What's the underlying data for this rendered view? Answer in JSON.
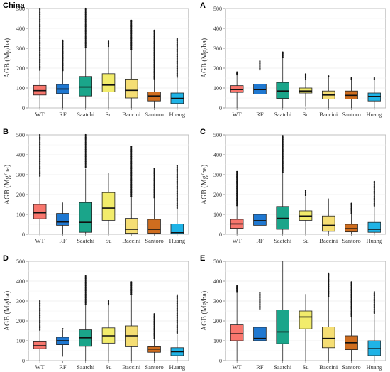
{
  "chart_data": [
    {
      "panel": "China",
      "type": "boxplot",
      "ylabel": "AGB (Mg/ha)",
      "ylim": [
        0,
        500
      ],
      "yticks": [
        0,
        100,
        200,
        300,
        400,
        500
      ],
      "grid": true,
      "categories": [
        "WT",
        "RF",
        "Saatchi",
        "Su",
        "Baccini",
        "Santoro",
        "Huang"
      ],
      "boxes": [
        {
          "name": "WT",
          "min": 0,
          "q1": 65,
          "median": 87,
          "q3": 113,
          "max": 500,
          "whisker_hi": 190,
          "color": "#f8766d"
        },
        {
          "name": "RF",
          "min": 0,
          "q1": 72,
          "median": 95,
          "q3": 118,
          "max": 340,
          "whisker_hi": 185,
          "color": "#1f78d1"
        },
        {
          "name": "Saatchi",
          "min": 0,
          "q1": 60,
          "median": 105,
          "q3": 158,
          "max": 500,
          "whisker_hi": 300,
          "color": "#1aa58a"
        },
        {
          "name": "Su",
          "min": 0,
          "q1": 80,
          "median": 115,
          "q3": 172,
          "max": 335,
          "whisker_hi": 310,
          "color": "#f2ec6b"
        },
        {
          "name": "Baccini",
          "min": 0,
          "q1": 50,
          "median": 88,
          "q3": 145,
          "max": 440,
          "whisker_hi": 290,
          "color": "#f5de74"
        },
        {
          "name": "Santoro",
          "min": 0,
          "q1": 35,
          "median": 60,
          "q3": 80,
          "max": 390,
          "whisker_hi": 145,
          "color": "#cf6d1f"
        },
        {
          "name": "Huang",
          "min": 0,
          "q1": 22,
          "median": 48,
          "q3": 75,
          "max": 350,
          "whisker_hi": 155,
          "color": "#1fb3e6"
        }
      ]
    },
    {
      "panel": "A",
      "type": "boxplot",
      "ylabel": "AGB (Mg/ha)",
      "ylim": [
        0,
        500
      ],
      "yticks": [
        0,
        100,
        200,
        300,
        400,
        500
      ],
      "grid": true,
      "categories": [
        "WT",
        "RF",
        "Saatchi",
        "Su",
        "Baccini",
        "Santoro",
        "Huang"
      ],
      "boxes": [
        {
          "name": "WT",
          "min": 0,
          "q1": 78,
          "median": 92,
          "q3": 112,
          "max": 180,
          "whisker_hi": 165,
          "color": "#f8766d"
        },
        {
          "name": "RF",
          "min": 0,
          "q1": 70,
          "median": 92,
          "q3": 120,
          "max": 235,
          "whisker_hi": 190,
          "color": "#1f78d1"
        },
        {
          "name": "Saatchi",
          "min": 0,
          "q1": 48,
          "median": 85,
          "q3": 128,
          "max": 280,
          "whisker_hi": 250,
          "color": "#1aa58a"
        },
        {
          "name": "Su",
          "min": 5,
          "q1": 75,
          "median": 85,
          "q3": 100,
          "max": 170,
          "whisker_hi": 145,
          "color": "#f2ec6b"
        },
        {
          "name": "Baccini",
          "min": 0,
          "q1": 45,
          "median": 65,
          "q3": 85,
          "max": 160,
          "whisker_hi": 155,
          "color": "#f5de74"
        },
        {
          "name": "Santoro",
          "min": 0,
          "q1": 45,
          "median": 63,
          "q3": 85,
          "max": 150,
          "whisker_hi": 140,
          "color": "#cf6d1f"
        },
        {
          "name": "Huang",
          "min": 0,
          "q1": 35,
          "median": 58,
          "q3": 75,
          "max": 150,
          "whisker_hi": 140,
          "color": "#1fb3e6"
        }
      ]
    },
    {
      "panel": "B",
      "type": "boxplot",
      "ylabel": "AGB (Mg/ha)",
      "ylim": [
        0,
        500
      ],
      "yticks": [
        0,
        100,
        200,
        300,
        400,
        500
      ],
      "grid": true,
      "categories": [
        "WT",
        "RF",
        "Saatchi",
        "Su",
        "Baccini",
        "Santoro",
        "Huang"
      ],
      "boxes": [
        {
          "name": "WT",
          "min": 0,
          "q1": 78,
          "median": 108,
          "q3": 150,
          "max": 500,
          "whisker_hi": 290,
          "color": "#f8766d"
        },
        {
          "name": "RF",
          "min": 0,
          "q1": 45,
          "median": 62,
          "q3": 105,
          "max": 160,
          "whisker_hi": 160,
          "color": "#1f78d1"
        },
        {
          "name": "Saatchi",
          "min": 0,
          "q1": 10,
          "median": 60,
          "q3": 160,
          "max": 500,
          "whisker_hi": 330,
          "color": "#1aa58a"
        },
        {
          "name": "Su",
          "min": 0,
          "q1": 70,
          "median": 132,
          "q3": 210,
          "max": 310,
          "whisker_hi": 310,
          "color": "#f2ec6b"
        },
        {
          "name": "Baccini",
          "min": 0,
          "q1": 5,
          "median": 25,
          "q3": 80,
          "max": 440,
          "whisker_hi": 190,
          "color": "#f5de74"
        },
        {
          "name": "Santoro",
          "min": 0,
          "q1": 5,
          "median": 25,
          "q3": 75,
          "max": 330,
          "whisker_hi": 180,
          "color": "#cf6d1f"
        },
        {
          "name": "Huang",
          "min": 0,
          "q1": 2,
          "median": 8,
          "q3": 52,
          "max": 345,
          "whisker_hi": 130,
          "color": "#1fb3e6"
        }
      ]
    },
    {
      "panel": "C",
      "type": "boxplot",
      "ylabel": "AGB (Mg/ha)",
      "ylim": [
        0,
        500
      ],
      "yticks": [
        0,
        100,
        200,
        300,
        400,
        500
      ],
      "grid": true,
      "categories": [
        "WT",
        "RF",
        "Saatchi",
        "Su",
        "Baccini",
        "Santoro",
        "Huang"
      ],
      "boxes": [
        {
          "name": "WT",
          "min": 0,
          "q1": 30,
          "median": 52,
          "q3": 75,
          "max": 315,
          "whisker_hi": 145,
          "color": "#f8766d"
        },
        {
          "name": "RF",
          "min": 0,
          "q1": 45,
          "median": 68,
          "q3": 100,
          "max": 160,
          "whisker_hi": 160,
          "color": "#1f78d1"
        },
        {
          "name": "Saatchi",
          "min": 0,
          "q1": 25,
          "median": 80,
          "q3": 140,
          "max": 495,
          "whisker_hi": 310,
          "color": "#1aa58a"
        },
        {
          "name": "Su",
          "min": 0,
          "q1": 70,
          "median": 92,
          "q3": 118,
          "max": 220,
          "whisker_hi": 190,
          "color": "#f2ec6b"
        },
        {
          "name": "Baccini",
          "min": 0,
          "q1": 15,
          "median": 45,
          "q3": 92,
          "max": 180,
          "whisker_hi": 180,
          "color": "#f5de74"
        },
        {
          "name": "Santoro",
          "min": 0,
          "q1": 12,
          "median": 28,
          "q3": 50,
          "max": 155,
          "whisker_hi": 105,
          "color": "#cf6d1f"
        },
        {
          "name": "Huang",
          "min": 0,
          "q1": 10,
          "median": 25,
          "q3": 60,
          "max": 265,
          "whisker_hi": 140,
          "color": "#1fb3e6"
        }
      ]
    },
    {
      "panel": "D",
      "type": "boxplot",
      "ylabel": "AGB (Mg/ha)",
      "ylim": [
        0,
        500
      ],
      "yticks": [
        0,
        100,
        200,
        300,
        400,
        500
      ],
      "grid": true,
      "categories": [
        "WT",
        "RF",
        "Saatchi",
        "Su",
        "Baccini",
        "Santoro",
        "Huang"
      ],
      "boxes": [
        {
          "name": "WT",
          "min": 0,
          "q1": 60,
          "median": 75,
          "q3": 95,
          "max": 300,
          "whisker_hi": 150,
          "color": "#f8766d"
        },
        {
          "name": "RF",
          "min": 20,
          "q1": 80,
          "median": 100,
          "q3": 118,
          "max": 160,
          "whisker_hi": 155,
          "color": "#1f78d1"
        },
        {
          "name": "Saatchi",
          "min": 0,
          "q1": 72,
          "median": 115,
          "q3": 155,
          "max": 425,
          "whisker_hi": 280,
          "color": "#1aa58a"
        },
        {
          "name": "Su",
          "min": 0,
          "q1": 88,
          "median": 125,
          "q3": 165,
          "max": 300,
          "whisker_hi": 280,
          "color": "#f2ec6b"
        },
        {
          "name": "Baccini",
          "min": 0,
          "q1": 70,
          "median": 125,
          "q3": 175,
          "max": 395,
          "whisker_hi": 330,
          "color": "#f5de74"
        },
        {
          "name": "Santoro",
          "min": 0,
          "q1": 42,
          "median": 58,
          "q3": 70,
          "max": 235,
          "whisker_hi": 110,
          "color": "#cf6d1f"
        },
        {
          "name": "Huang",
          "min": 0,
          "q1": 25,
          "median": 45,
          "q3": 65,
          "max": 330,
          "whisker_hi": 130,
          "color": "#1fb3e6"
        }
      ]
    },
    {
      "panel": "E",
      "type": "boxplot",
      "ylabel": "AGB (Mg/ha)",
      "ylim": [
        0,
        500
      ],
      "yticks": [
        0,
        100,
        200,
        300,
        400,
        500
      ],
      "grid": true,
      "categories": [
        "WT",
        "RF",
        "Saatchi",
        "Su",
        "Baccini",
        "Santoro",
        "Huang"
      ],
      "boxes": [
        {
          "name": "WT",
          "min": 0,
          "q1": 100,
          "median": 135,
          "q3": 180,
          "max": 375,
          "whisker_hi": 340,
          "color": "#f8766d"
        },
        {
          "name": "RF",
          "min": 0,
          "q1": 100,
          "median": 112,
          "q3": 168,
          "max": 340,
          "whisker_hi": 260,
          "color": "#1f78d1"
        },
        {
          "name": "Saatchi",
          "min": 0,
          "q1": 85,
          "median": 145,
          "q3": 255,
          "max": 500,
          "whisker_hi": 500,
          "color": "#1aa58a"
        },
        {
          "name": "Su",
          "min": 0,
          "q1": 160,
          "median": 220,
          "q3": 250,
          "max": 335,
          "whisker_hi": 335,
          "color": "#f2ec6b"
        },
        {
          "name": "Baccini",
          "min": 0,
          "q1": 65,
          "median": 112,
          "q3": 170,
          "max": 440,
          "whisker_hi": 320,
          "color": "#f5de74"
        },
        {
          "name": "Santoro",
          "min": 0,
          "q1": 55,
          "median": 90,
          "q3": 125,
          "max": 395,
          "whisker_hi": 220,
          "color": "#cf6d1f"
        },
        {
          "name": "Huang",
          "min": 0,
          "q1": 25,
          "median": 60,
          "q3": 100,
          "max": 345,
          "whisker_hi": 230,
          "color": "#1fb3e6"
        }
      ]
    }
  ]
}
